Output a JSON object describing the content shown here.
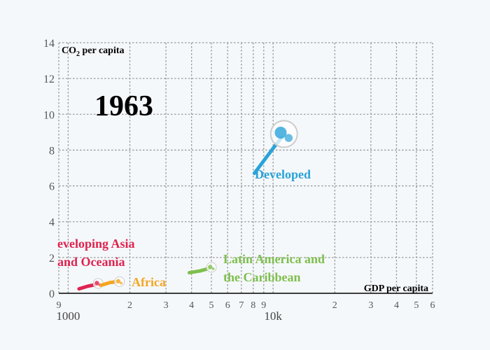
{
  "chart_data": {
    "type": "scatter",
    "year": "1963",
    "xlabel": "GDP per capita",
    "ylabel_main": "CO",
    "ylabel_sub": "2",
    "ylabel_rest": " per capita",
    "x_scale": "log",
    "xlim": [
      900,
      60000
    ],
    "ylim": [
      0,
      14
    ],
    "grid": true,
    "y_ticks": [
      0,
      2,
      4,
      6,
      8,
      10,
      12,
      14
    ],
    "x_minor_ticks": [
      {
        "v": 900,
        "label": "9"
      },
      {
        "v": 2000,
        "label": "2"
      },
      {
        "v": 3000,
        "label": "3"
      },
      {
        "v": 4000,
        "label": "4"
      },
      {
        "v": 5000,
        "label": "5"
      },
      {
        "v": 6000,
        "label": "6"
      },
      {
        "v": 7000,
        "label": "7"
      },
      {
        "v": 8000,
        "label": "8"
      },
      {
        "v": 9000,
        "label": "9"
      },
      {
        "v": 20000,
        "label": "2"
      },
      {
        "v": 30000,
        "label": "3"
      },
      {
        "v": 40000,
        "label": "4"
      },
      {
        "v": 50000,
        "label": "5"
      },
      {
        "v": 60000,
        "label": "6"
      }
    ],
    "x_major_ticks": [
      {
        "v": 1000,
        "label": "1000"
      },
      {
        "v": 10000,
        "label": "10k"
      }
    ],
    "series": [
      {
        "name": "Developed",
        "color": "#2aa3d8",
        "label_lines": [
          "Developed"
        ],
        "trail": [
          [
            8100,
            6.7
          ],
          [
            9000,
            7.4
          ],
          [
            10000,
            8.1
          ],
          [
            11000,
            8.7
          ]
        ],
        "point": [
          11300,
          8.9
        ]
      },
      {
        "name": "Developing Asia and Oceania",
        "color": "#e0234f",
        "label_lines": [
          "eveloping Asia",
          "and Oceania"
        ],
        "trail": [
          [
            1130,
            0.25
          ],
          [
            1250,
            0.4
          ],
          [
            1380,
            0.5
          ]
        ],
        "point": [
          1400,
          0.55
        ]
      },
      {
        "name": "Africa",
        "color": "#f4a623",
        "label_lines": [
          "Africa"
        ],
        "trail": [
          [
            1450,
            0.45
          ],
          [
            1600,
            0.6
          ],
          [
            1750,
            0.65
          ]
        ],
        "point": [
          1780,
          0.65
        ]
      },
      {
        "name": "Latin America and the Caribbean",
        "color": "#7ebf4d",
        "label_lines": [
          "Latin America and",
          "the Caribbean"
        ],
        "trail": [
          [
            3900,
            1.15
          ],
          [
            4400,
            1.25
          ],
          [
            4900,
            1.4
          ]
        ],
        "point": [
          5000,
          1.45
        ]
      }
    ]
  }
}
